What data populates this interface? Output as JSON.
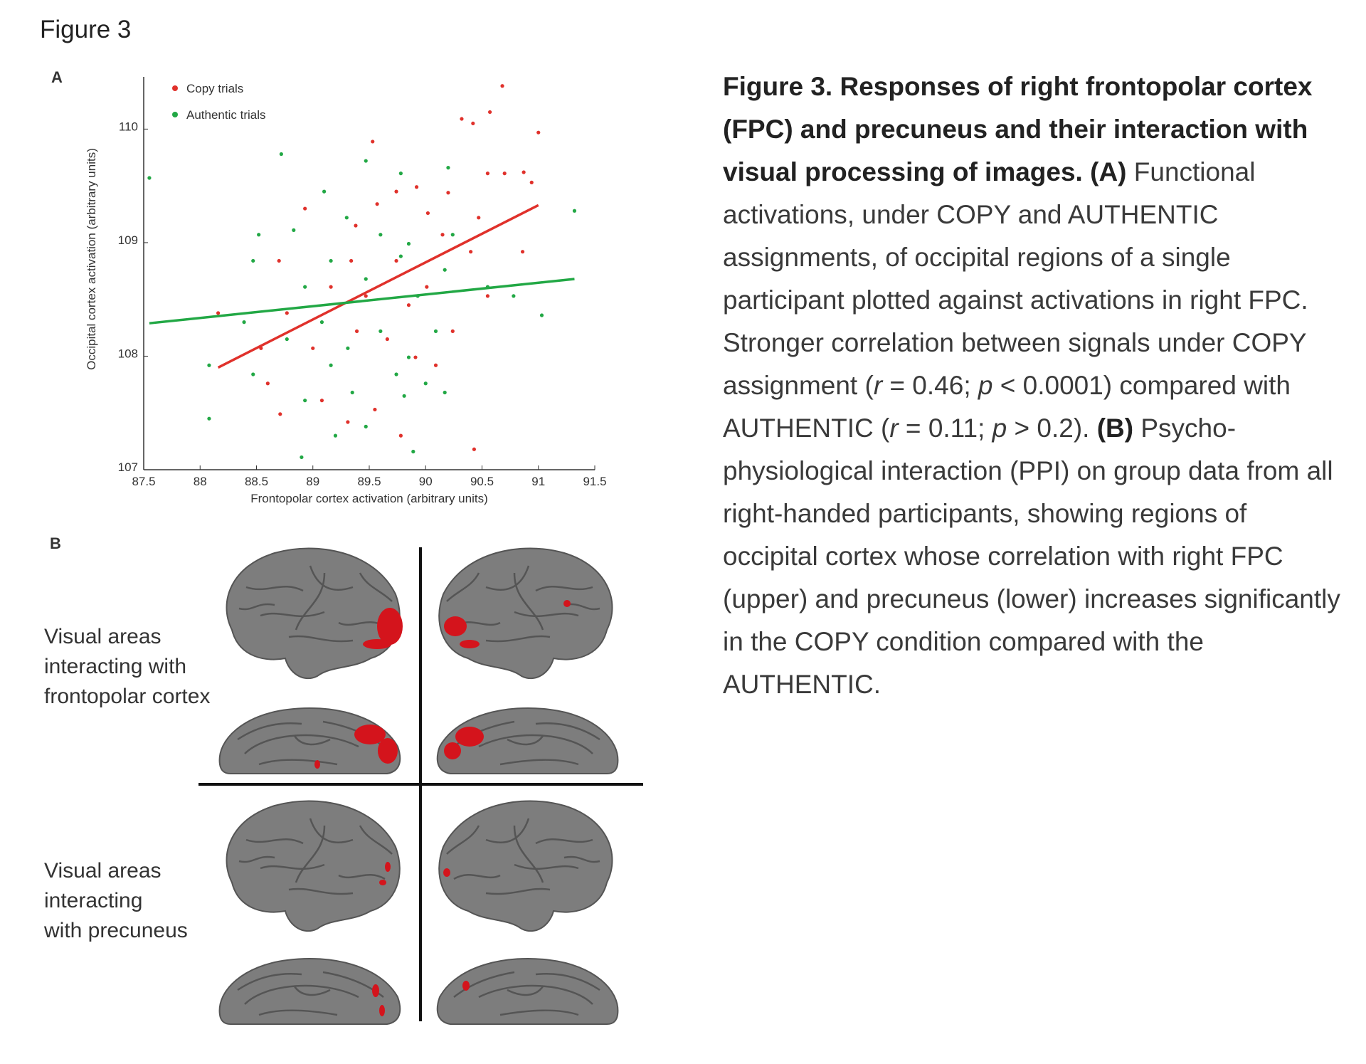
{
  "heading": "Figure 3",
  "panels": {
    "a": "A",
    "b": "B"
  },
  "chart_data": {
    "type": "scatter",
    "xlabel": "Frontopolar cortex activation (arbitrary units)",
    "ylabel": "Occipital cortex activation (arbitrary units)",
    "xlim": [
      87.5,
      91.5
    ],
    "ylim": [
      107,
      110.46
    ],
    "xticks": [
      87.5,
      88,
      88.5,
      89,
      89.5,
      90,
      90.5,
      91,
      91.5
    ],
    "yticks": [
      107,
      108,
      109,
      110
    ],
    "legend": "upper left",
    "series": [
      {
        "name": "Copy trials",
        "color": "#e0312b",
        "x": [
          90.68,
          90.57,
          90.32,
          90.42,
          91.0,
          89.53,
          90.87,
          90.55,
          89.92,
          89.57,
          90.02,
          90.2,
          90.47,
          90.15,
          88.93,
          88.7,
          89.34,
          89.74,
          90.4,
          90.86,
          89.16,
          89.47,
          89.85,
          88.16,
          88.77,
          89.39,
          89.66,
          90.24,
          88.54,
          89.0,
          89.91,
          90.09,
          88.6,
          89.08,
          89.55,
          89.78,
          90.43,
          88.71,
          89.31,
          90.7,
          90.94,
          89.74,
          89.38,
          90.01,
          90.55
        ],
        "values": [
          110.38,
          110.15,
          110.09,
          110.05,
          109.97,
          109.89,
          109.62,
          109.61,
          109.49,
          109.34,
          109.26,
          109.44,
          109.22,
          109.07,
          109.3,
          108.84,
          108.84,
          108.84,
          108.92,
          108.92,
          108.61,
          108.53,
          108.45,
          108.38,
          108.38,
          108.22,
          108.15,
          108.22,
          108.07,
          108.07,
          107.99,
          107.92,
          107.76,
          107.61,
          107.53,
          107.3,
          107.18,
          107.49,
          107.42,
          109.61,
          109.53,
          109.45,
          109.15,
          108.61,
          108.53
        ]
      },
      {
        "name": "Authentic trials",
        "color": "#22a845",
        "x": [
          87.55,
          88.72,
          89.47,
          89.78,
          90.2,
          89.1,
          88.52,
          88.83,
          89.3,
          89.6,
          89.85,
          90.24,
          88.47,
          89.16,
          89.78,
          90.17,
          91.32,
          88.93,
          89.47,
          89.93,
          90.55,
          90.78,
          91.03,
          88.39,
          89.08,
          89.6,
          90.09,
          88.77,
          89.31,
          89.85,
          88.47,
          89.16,
          89.74,
          90.0,
          88.93,
          89.35,
          89.81,
          88.08,
          89.2,
          89.47,
          89.89,
          88.9,
          88.08,
          90.17
        ],
        "values": [
          109.57,
          109.78,
          109.72,
          109.61,
          109.66,
          109.45,
          109.07,
          109.11,
          109.22,
          109.07,
          108.99,
          109.07,
          108.84,
          108.84,
          108.88,
          108.76,
          109.28,
          108.61,
          108.68,
          108.53,
          108.61,
          108.53,
          108.36,
          108.3,
          108.3,
          108.22,
          108.22,
          108.15,
          108.07,
          107.99,
          107.84,
          107.92,
          107.84,
          107.76,
          107.61,
          107.68,
          107.65,
          107.45,
          107.3,
          107.38,
          107.16,
          107.11,
          107.92,
          107.68
        ]
      }
    ],
    "fits": [
      {
        "color": "#e0312b",
        "x": [
          88.16,
          91.0
        ],
        "values": [
          107.9,
          109.33
        ]
      },
      {
        "color": "#22a845",
        "x": [
          87.55,
          91.32
        ],
        "values": [
          108.29,
          108.68
        ]
      }
    ]
  },
  "row_labels": [
    [
      "Visual areas",
      "interacting with",
      "frontopolar cortex"
    ],
    [
      "Visual areas",
      "interacting",
      "with precuneus"
    ]
  ],
  "caption": [
    {
      "style": "bold",
      "text": "Figure 3. Responses of right frontopolar cortex (FPC) and precuneus and their interaction with visual processing of images. (A)"
    },
    {
      "style": "normal",
      "text": " Functional activations, under COPY and AUTHENTIC assignments, of occipital regions of a single participant plotted against activations in right FPC. Stronger correlation between signals under COPY assignment ("
    },
    {
      "style": "italic",
      "text": "r"
    },
    {
      "style": "normal",
      "text": " = 0.46; "
    },
    {
      "style": "italic",
      "text": "p"
    },
    {
      "style": "normal",
      "text": " < 0.0001) compared with AUTHENTIC ("
    },
    {
      "style": "italic",
      "text": "r"
    },
    {
      "style": "normal",
      "text": " = 0.11; "
    },
    {
      "style": "italic",
      "text": "p"
    },
    {
      "style": "normal",
      "text": " > 0.2). "
    },
    {
      "style": "bold",
      "text": "(B)"
    },
    {
      "style": "normal",
      "text": " Psycho-physiological interaction (PPI) on group data from all right-handed participants, showing regions of occipital cortex whose correlation with right FPC (upper) and precuneus (lower) increases significantly in the COPY condition compared with the AUTHENTIC."
    }
  ]
}
